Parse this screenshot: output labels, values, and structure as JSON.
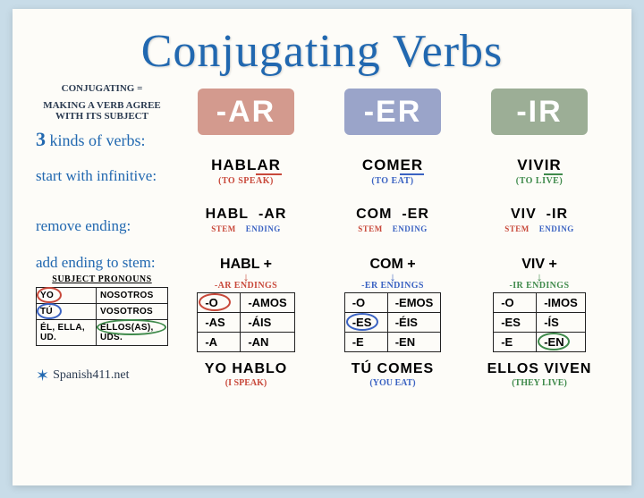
{
  "title": "Conjugating Verbs",
  "definition_lines": [
    "Conjugating =",
    "making a verb agree",
    "with its subject"
  ],
  "three_kinds": "3 kinds of verbs:",
  "colors": {
    "ar": "#d39a8e",
    "er": "#9aa4c9",
    "ir": "#9cae96",
    "ar_accent": "#c8483a",
    "er_accent": "#3a62c2",
    "ir_accent": "#3f8a4b",
    "title": "#2168b0",
    "text": "#2a3a50"
  },
  "columns": [
    {
      "key": "ar",
      "badge": "-AR",
      "infinitive": {
        "stem": "HABL",
        "suffix": "AR",
        "trans": "(TO SPEAK)"
      },
      "remove": {
        "stem": "HABL",
        "end": "-AR"
      },
      "add": {
        "plus": "HABL +",
        "label": "-AR ENDINGS"
      },
      "endings": [
        [
          "-O",
          "-AMOS"
        ],
        [
          "-AS",
          "-ÁIS"
        ],
        [
          "-A",
          "-AN"
        ]
      ],
      "circle_cell": [
        0,
        0
      ],
      "final": {
        "text": "YO HABLO",
        "trans": "(I SPEAK)"
      }
    },
    {
      "key": "er",
      "badge": "-ER",
      "infinitive": {
        "stem": "COM",
        "suffix": "ER",
        "trans": "(TO EAT)"
      },
      "remove": {
        "stem": "COM",
        "end": "-ER"
      },
      "add": {
        "plus": "COM +",
        "label": "-ER ENDINGS"
      },
      "endings": [
        [
          "-O",
          "-EMOS"
        ],
        [
          "-ES",
          "-ÉIS"
        ],
        [
          "-E",
          "-EN"
        ]
      ],
      "circle_cell": [
        1,
        0
      ],
      "final": {
        "text": "TÚ COMES",
        "trans": "(YOU EAT)"
      }
    },
    {
      "key": "ir",
      "badge": "-IR",
      "infinitive": {
        "stem": "VIV",
        "suffix": "IR",
        "trans": "(TO LIVE)"
      },
      "remove": {
        "stem": "VIV",
        "end": "-IR"
      },
      "add": {
        "plus": "VIV +",
        "label": "-IR ENDINGS"
      },
      "endings": [
        [
          "-O",
          "-IMOS"
        ],
        [
          "-ES",
          "-ÍS"
        ],
        [
          "-E",
          "-EN"
        ]
      ],
      "circle_cell": [
        2,
        1
      ],
      "final": {
        "text": "ELLOS VIVEN",
        "trans": "(THEY LIVE)"
      }
    }
  ],
  "row_labels": {
    "infinitive": "start with infinitive:",
    "remove": "remove ending:",
    "add": "add ending to stem:",
    "pronouns": "SUBJECT PRONOUNS"
  },
  "stem_end_labels": {
    "stem": "STEM",
    "ending": "ENDING"
  },
  "pronouns": [
    [
      "YO",
      "NOSOTROS"
    ],
    [
      "TÚ",
      "VOSOTROS"
    ],
    [
      "ÉL, ELLA, UD.",
      "ELLOS(AS), UDS."
    ]
  ],
  "pronoun_circles": [
    [
      0,
      0,
      "ar"
    ],
    [
      1,
      0,
      "er"
    ],
    [
      2,
      1,
      "ir"
    ]
  ],
  "source": "Spanish411.net"
}
